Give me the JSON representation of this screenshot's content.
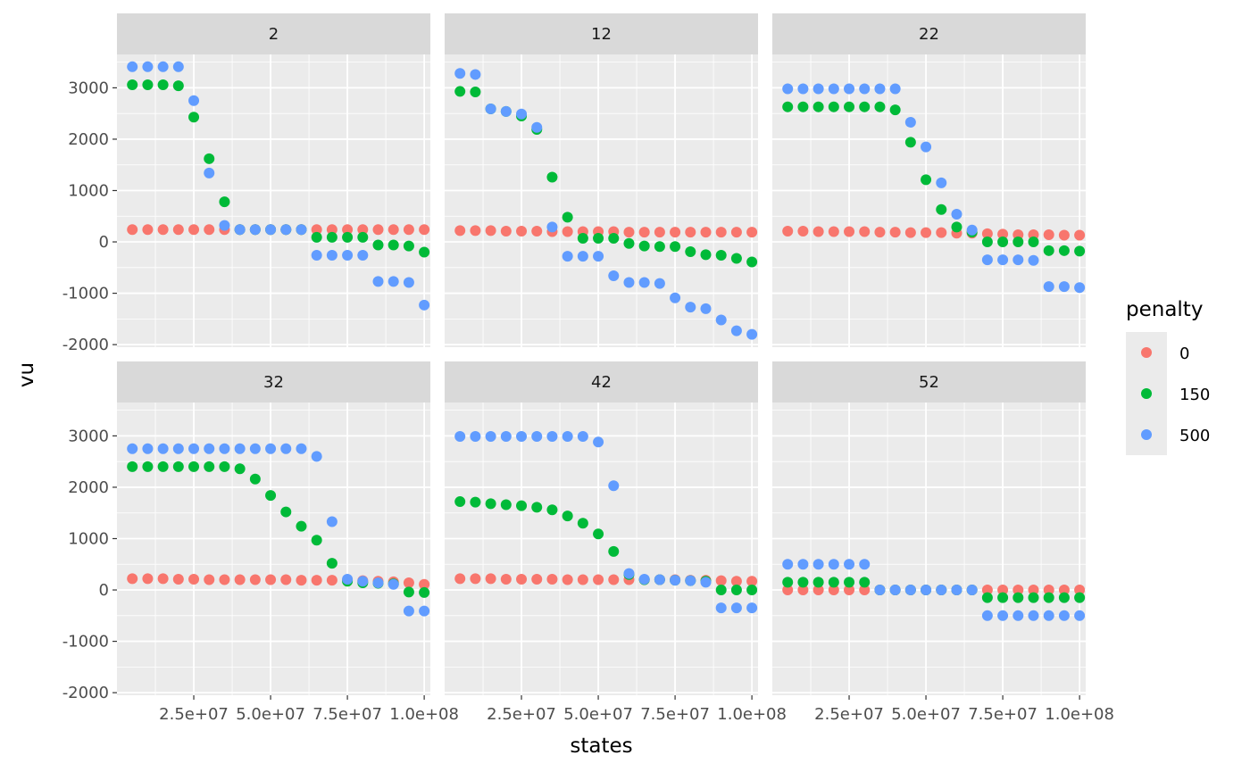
{
  "chart_data": {
    "type": "scatter",
    "facet_by": "panel",
    "xlabel": "states",
    "ylabel": "vu",
    "xlim": [
      0,
      102000000
    ],
    "ylim": [
      -2050,
      3650
    ],
    "x_ticks": [
      25000000,
      50000000,
      75000000,
      100000000
    ],
    "x_tick_labels": [
      "2.5e+07",
      "5.0e+07",
      "7.5e+07",
      "1.0e+08"
    ],
    "y_ticks": [
      -2000,
      -1000,
      0,
      1000,
      2000,
      3000
    ],
    "y_tick_labels": [
      "-2000",
      "-1000",
      "0",
      "1000",
      "2000",
      "3000"
    ],
    "legend": {
      "title": "penalty",
      "entries": [
        {
          "label": "0",
          "color": "#F8766D"
        },
        {
          "label": "150",
          "color": "#00BA38"
        },
        {
          "label": "500",
          "color": "#619CFF"
        }
      ]
    },
    "x": [
      5000000,
      10000000,
      15000000,
      20000000,
      25000000,
      30000000,
      35000000,
      40000000,
      45000000,
      50000000,
      55000000,
      60000000,
      65000000,
      70000000,
      75000000,
      80000000,
      85000000,
      90000000,
      95000000,
      100000000
    ],
    "panels": [
      {
        "label": "2",
        "series": [
          {
            "name": "0",
            "values": [
              240,
              240,
              240,
              240,
              240,
              240,
              240,
              240,
              240,
              240,
              240,
              240,
              240,
              240,
              240,
              240,
              240,
              240,
              240,
              240
            ]
          },
          {
            "name": "150",
            "values": [
              3060,
              3060,
              3060,
              3040,
              2430,
              1620,
              780,
              240,
              240,
              240,
              240,
              240,
              90,
              90,
              90,
              90,
              -60,
              -60,
              -80,
              -200
            ]
          },
          {
            "name": "500",
            "values": [
              3410,
              3410,
              3410,
              3410,
              2750,
              1340,
              320,
              240,
              240,
              240,
              240,
              240,
              -260,
              -260,
              -260,
              -260,
              -770,
              -770,
              -790,
              -1230
            ]
          }
        ]
      },
      {
        "label": "12",
        "series": [
          {
            "name": "0",
            "values": [
              220,
              220,
              220,
              210,
              210,
              210,
              200,
              200,
              200,
              200,
              200,
              190,
              190,
              190,
              190,
              190,
              190,
              190,
              190,
              190
            ]
          },
          {
            "name": "150",
            "values": [
              2930,
              2920,
              2590,
              2540,
              2450,
              2190,
              1260,
              480,
              70,
              70,
              70,
              -30,
              -80,
              -90,
              -90,
              -190,
              -250,
              -260,
              -320,
              -390
            ]
          },
          {
            "name": "500",
            "values": [
              3280,
              3260,
              2590,
              2540,
              2490,
              2230,
              290,
              -280,
              -280,
              -280,
              -660,
              -790,
              -790,
              -810,
              -1090,
              -1270,
              -1300,
              -1520,
              -1730,
              -1800
            ]
          }
        ]
      },
      {
        "label": "22",
        "series": [
          {
            "name": "0",
            "values": [
              210,
              210,
              200,
              200,
              200,
              200,
              190,
              190,
              180,
              180,
              180,
              170,
              170,
              160,
              150,
              140,
              140,
              140,
              130,
              130
            ]
          },
          {
            "name": "150",
            "values": [
              2630,
              2630,
              2630,
              2630,
              2630,
              2630,
              2630,
              2570,
              1940,
              1210,
              630,
              290,
              190,
              0,
              0,
              0,
              0,
              -170,
              -170,
              -180
            ]
          },
          {
            "name": "500",
            "values": [
              2980,
              2980,
              2980,
              2980,
              2980,
              2980,
              2980,
              2980,
              2330,
              1850,
              1150,
              540,
              230,
              -350,
              -350,
              -350,
              -360,
              -870,
              -870,
              -890
            ]
          }
        ]
      },
      {
        "label": "32",
        "series": [
          {
            "name": "0",
            "values": [
              220,
              220,
              220,
              210,
              210,
              200,
              200,
              200,
              200,
              200,
              200,
              190,
              190,
              190,
              190,
              180,
              170,
              160,
              140,
              110
            ]
          },
          {
            "name": "150",
            "values": [
              2400,
              2400,
              2400,
              2400,
              2400,
              2400,
              2400,
              2360,
              2160,
              1840,
              1520,
              1240,
              970,
              520,
              170,
              140,
              130,
              120,
              -40,
              -50
            ]
          },
          {
            "name": "500",
            "values": [
              2750,
              2750,
              2750,
              2750,
              2750,
              2750,
              2750,
              2750,
              2750,
              2750,
              2750,
              2750,
              2600,
              1330,
              210,
              170,
              140,
              110,
              -410,
              -410
            ]
          }
        ]
      },
      {
        "label": "42",
        "series": [
          {
            "name": "0",
            "values": [
              220,
              220,
              220,
              210,
              210,
              210,
              210,
              200,
              200,
              200,
              200,
              200,
              200,
              200,
              200,
              190,
              190,
              180,
              170,
              170
            ]
          },
          {
            "name": "150",
            "values": [
              1720,
              1710,
              1680,
              1660,
              1640,
              1610,
              1560,
              1440,
              1300,
              1090,
              750,
              300,
              200,
              200,
              190,
              180,
              170,
              0,
              0,
              0
            ]
          },
          {
            "name": "500",
            "values": [
              2990,
              2990,
              2990,
              2990,
              2990,
              2990,
              2990,
              2990,
              2990,
              2880,
              2030,
              320,
              210,
              200,
              190,
              180,
              150,
              -350,
              -350,
              -350
            ]
          }
        ]
      },
      {
        "label": "52",
        "series": [
          {
            "name": "0",
            "values": [
              0,
              0,
              0,
              0,
              0,
              0,
              0,
              0,
              0,
              0,
              0,
              0,
              0,
              0,
              0,
              0,
              0,
              0,
              0,
              0
            ]
          },
          {
            "name": "150",
            "values": [
              150,
              150,
              150,
              150,
              150,
              150,
              0,
              0,
              0,
              0,
              0,
              0,
              0,
              -150,
              -150,
              -150,
              -150,
              -150,
              -150,
              -150
            ]
          },
          {
            "name": "500",
            "values": [
              500,
              500,
              500,
              500,
              500,
              500,
              0,
              0,
              0,
              0,
              0,
              0,
              0,
              -500,
              -500,
              -500,
              -500,
              -500,
              -500,
              -500
            ]
          }
        ]
      }
    ]
  }
}
